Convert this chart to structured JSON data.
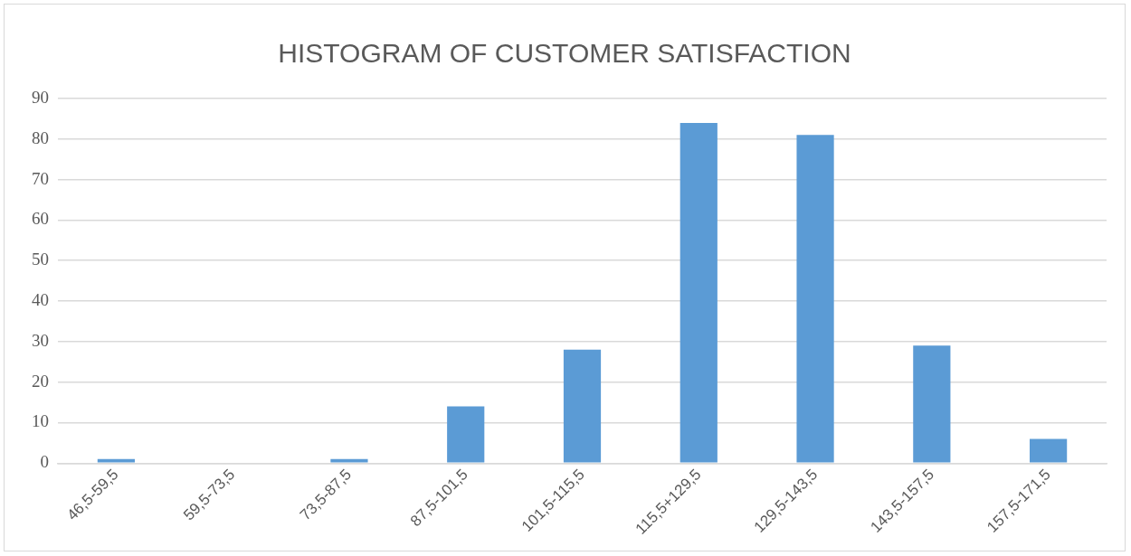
{
  "chart_data": {
    "type": "bar",
    "title": "HISTOGRAM OF CUSTOMER SATISFACTION",
    "categories": [
      "46,5-59,5",
      "59,5-73,5",
      "73,5-87,5",
      "87,5-101,5",
      "101,5-115,5",
      "115,5+129,5",
      "129,5-143,5",
      "143,5-157,5",
      "157,5-171,5"
    ],
    "values": [
      1,
      0,
      1,
      14,
      28,
      84,
      81,
      29,
      6
    ],
    "color": "#5b9bd5",
    "ylim": [
      0,
      90
    ],
    "yticks": [
      0,
      10,
      20,
      30,
      40,
      50,
      60,
      70,
      80,
      90
    ],
    "grid": "y",
    "legend": false
  }
}
